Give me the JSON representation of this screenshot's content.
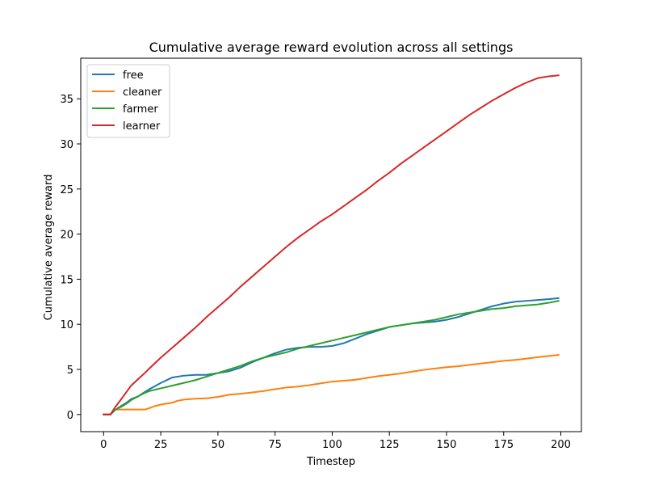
{
  "chart_data": {
    "type": "line",
    "title": "Cumulative average reward evolution across all settings",
    "xlabel": "Timestep",
    "ylabel": "Cumulative average reward",
    "xlim": [
      -10,
      209
    ],
    "ylim": [
      -1.9,
      39.5
    ],
    "xticks": [
      0,
      25,
      50,
      75,
      100,
      125,
      150,
      175,
      200
    ],
    "yticks": [
      0,
      5,
      10,
      15,
      20,
      25,
      30,
      35
    ],
    "grid": false,
    "legend_position": "upper-left",
    "series": [
      {
        "name": "free",
        "color": "#1f77b4",
        "x": [
          0,
          3,
          5,
          8,
          10,
          12,
          15,
          18,
          20,
          25,
          30,
          35,
          40,
          45,
          50,
          55,
          60,
          65,
          70,
          75,
          80,
          85,
          90,
          95,
          100,
          105,
          110,
          115,
          120,
          125,
          130,
          135,
          140,
          145,
          150,
          155,
          160,
          165,
          170,
          175,
          180,
          185,
          190,
          195,
          199
        ],
        "y": [
          0,
          0,
          0.5,
          1.0,
          1.3,
          1.7,
          2.0,
          2.5,
          2.8,
          3.5,
          4.1,
          4.3,
          4.4,
          4.4,
          4.6,
          4.8,
          5.2,
          5.8,
          6.3,
          6.8,
          7.2,
          7.4,
          7.5,
          7.5,
          7.6,
          7.9,
          8.4,
          8.9,
          9.3,
          9.7,
          9.9,
          10.1,
          10.2,
          10.3,
          10.5,
          10.8,
          11.2,
          11.6,
          12.0,
          12.3,
          12.5,
          12.6,
          12.7,
          12.8,
          12.9
        ]
      },
      {
        "name": "cleaner",
        "color": "#ff7f0e",
        "x": [
          0,
          3,
          4,
          5,
          10,
          15,
          18,
          20,
          22,
          25,
          30,
          32,
          35,
          40,
          45,
          50,
          53,
          55,
          60,
          65,
          70,
          75,
          80,
          85,
          90,
          95,
          100,
          105,
          110,
          115,
          120,
          125,
          130,
          135,
          140,
          145,
          150,
          155,
          160,
          165,
          170,
          175,
          180,
          185,
          190,
          195,
          199
        ],
        "y": [
          0,
          0,
          0.3,
          0.55,
          0.55,
          0.55,
          0.55,
          0.7,
          0.9,
          1.1,
          1.3,
          1.5,
          1.65,
          1.75,
          1.8,
          1.95,
          2.1,
          2.2,
          2.3,
          2.45,
          2.6,
          2.8,
          3.0,
          3.1,
          3.25,
          3.45,
          3.65,
          3.75,
          3.85,
          4.05,
          4.25,
          4.4,
          4.55,
          4.75,
          4.95,
          5.1,
          5.25,
          5.35,
          5.5,
          5.65,
          5.8,
          5.95,
          6.05,
          6.2,
          6.35,
          6.5,
          6.6
        ]
      },
      {
        "name": "farmer",
        "color": "#2ca02c",
        "x": [
          0,
          3,
          5,
          8,
          10,
          12,
          15,
          18,
          20,
          25,
          30,
          35,
          40,
          45,
          50,
          55,
          60,
          65,
          70,
          75,
          80,
          85,
          90,
          95,
          100,
          105,
          110,
          115,
          120,
          125,
          130,
          135,
          140,
          145,
          150,
          155,
          160,
          165,
          170,
          175,
          180,
          185,
          190,
          195,
          199
        ],
        "y": [
          0,
          0,
          0.5,
          0.9,
          1.2,
          1.6,
          2.0,
          2.4,
          2.6,
          2.9,
          3.2,
          3.5,
          3.8,
          4.2,
          4.6,
          5.0,
          5.4,
          5.9,
          6.3,
          6.6,
          6.9,
          7.3,
          7.6,
          7.9,
          8.2,
          8.5,
          8.8,
          9.1,
          9.4,
          9.7,
          9.9,
          10.1,
          10.3,
          10.5,
          10.8,
          11.1,
          11.3,
          11.5,
          11.7,
          11.8,
          12.0,
          12.1,
          12.2,
          12.4,
          12.6
        ]
      },
      {
        "name": "learner",
        "color": "#d62728",
        "x": [
          0,
          3,
          5,
          8,
          10,
          12,
          15,
          18,
          20,
          25,
          30,
          35,
          40,
          45,
          50,
          55,
          60,
          65,
          70,
          75,
          80,
          85,
          90,
          95,
          100,
          105,
          110,
          115,
          120,
          125,
          130,
          135,
          140,
          145,
          150,
          155,
          160,
          165,
          170,
          175,
          180,
          185,
          190,
          195,
          199
        ],
        "y": [
          0,
          0,
          0.8,
          1.8,
          2.5,
          3.2,
          3.9,
          4.6,
          5.1,
          6.3,
          7.4,
          8.5,
          9.6,
          10.8,
          11.9,
          13.0,
          14.2,
          15.3,
          16.4,
          17.5,
          18.6,
          19.6,
          20.5,
          21.4,
          22.2,
          23.1,
          24.0,
          24.9,
          25.9,
          26.8,
          27.8,
          28.7,
          29.6,
          30.5,
          31.4,
          32.3,
          33.2,
          34.0,
          34.8,
          35.5,
          36.2,
          36.8,
          37.3,
          37.5,
          37.6
        ]
      }
    ]
  }
}
